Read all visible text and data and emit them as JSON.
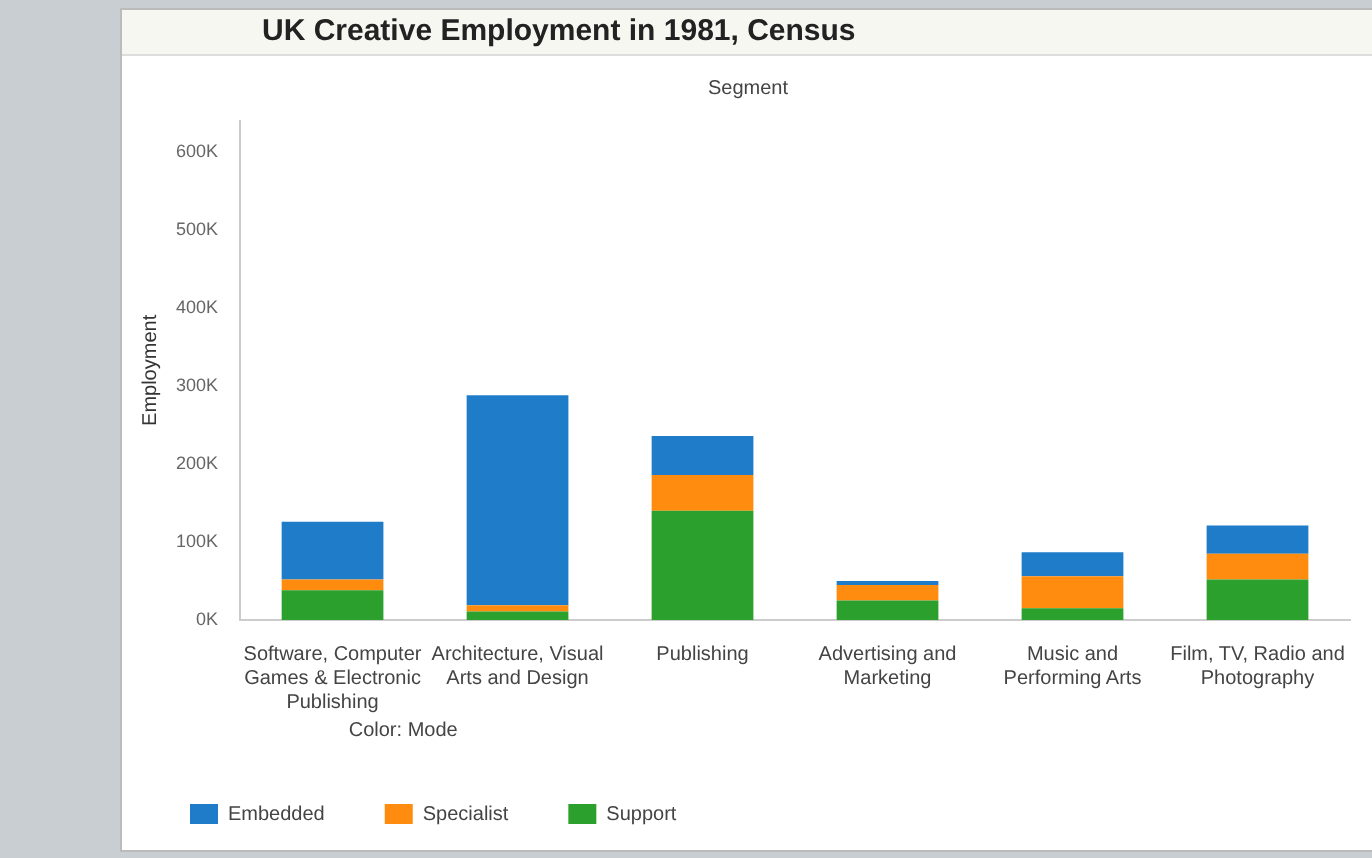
{
  "chart_data": {
    "type": "bar",
    "title": "UK Creative Employment in 1981, Census",
    "xlabel": "Segment",
    "ylabel": "Employment",
    "legend_title": "Color: Mode",
    "categories": [
      "Software, Computer Games & Electronic Publishing",
      "Architecture, Visual Arts and Design",
      "Publishing",
      "Advertising and Marketing",
      "Music and Performing Arts",
      "Film, TV, Radio and Photography"
    ],
    "stacked": true,
    "series": [
      {
        "name": "Support",
        "color": "#2ca02c",
        "values": [
          38000,
          11000,
          140000,
          25000,
          15000,
          52000
        ]
      },
      {
        "name": "Specialist",
        "color": "#ff8c0f",
        "values": [
          14000,
          8000,
          46000,
          20000,
          41000,
          33000
        ]
      },
      {
        "name": "Embedded",
        "color": "#1f7cc9",
        "values": [
          74000,
          269000,
          50000,
          5000,
          31000,
          36000
        ]
      }
    ],
    "ylim": [
      0,
      640000
    ],
    "yticks": [
      {
        "value": 0,
        "label": "0K"
      },
      {
        "value": 100000,
        "label": "100K"
      },
      {
        "value": 200000,
        "label": "200K"
      },
      {
        "value": 300000,
        "label": "300K"
      },
      {
        "value": 400000,
        "label": "400K"
      },
      {
        "value": 500000,
        "label": "500K"
      },
      {
        "value": 600000,
        "label": "600K"
      }
    ],
    "grid": false,
    "legend": "bottom"
  }
}
